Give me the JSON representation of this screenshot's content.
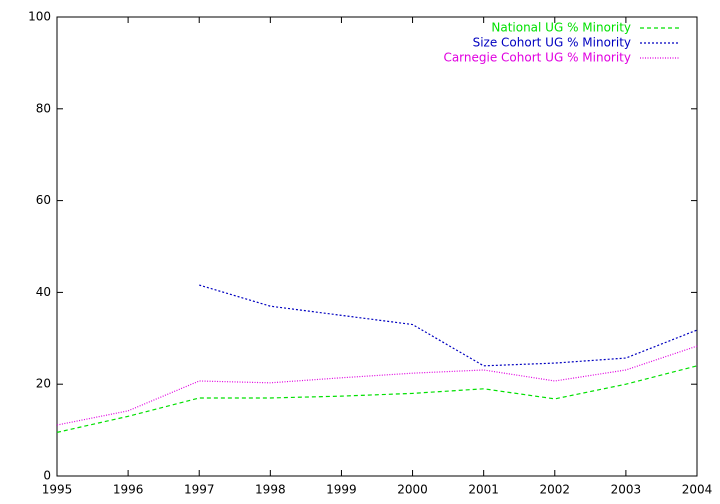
{
  "chart_data": {
    "type": "line",
    "x": [
      1995,
      1996,
      1997,
      1998,
      1999,
      2000,
      2001,
      2002,
      2003,
      2004
    ],
    "xlim": [
      1995,
      2004
    ],
    "xticks": [
      1995,
      1996,
      1997,
      1998,
      1999,
      2000,
      2001,
      2002,
      2003,
      2004
    ],
    "ylim": [
      0,
      100
    ],
    "yticks": [
      0,
      20,
      40,
      60,
      80,
      100
    ],
    "legend": "top-right",
    "series": [
      {
        "name": "National UG % Minority",
        "color": "#00e000",
        "dash": "dashed",
        "values": [
          9.5,
          13,
          17,
          17,
          17.4,
          18,
          19,
          16.8,
          20,
          24
        ]
      },
      {
        "name": "Size Cohort UG % Minority",
        "color": "#0000c0",
        "dash": "dotted",
        "values": [
          null,
          null,
          41.6,
          37,
          35,
          33,
          24,
          24.6,
          25.7,
          31.8
        ]
      },
      {
        "name": "Carnegie Cohort UG % Minority",
        "color": "#e000e0",
        "dash": "fine-dotted",
        "values": [
          11.1,
          14.2,
          20.7,
          20.3,
          21.4,
          22.4,
          23.1,
          20.7,
          23.1,
          28.3
        ]
      }
    ]
  }
}
